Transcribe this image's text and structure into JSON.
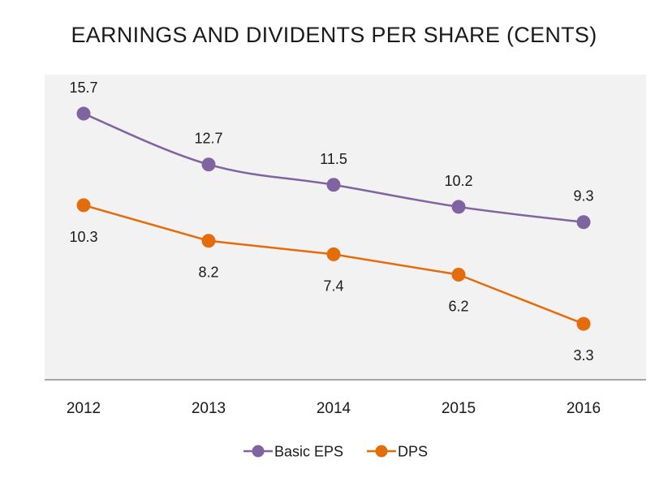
{
  "chart_data": {
    "type": "line",
    "title": "EARNINGS AND DIVIDENTS PER SHARE (CENTS)",
    "categories": [
      "2012",
      "2013",
      "2014",
      "2015",
      "2016"
    ],
    "series": [
      {
        "name": "Basic EPS",
        "color": "#8064a2",
        "values": [
          15.7,
          12.7,
          11.5,
          10.2,
          9.3
        ]
      },
      {
        "name": "DPS",
        "color": "#e46c0a",
        "values": [
          10.3,
          8.2,
          7.4,
          6.2,
          3.3
        ]
      }
    ],
    "ylim": [
      0,
      18
    ],
    "grid": false,
    "legend": "bottom",
    "plot_background": "#f2f2f2"
  }
}
